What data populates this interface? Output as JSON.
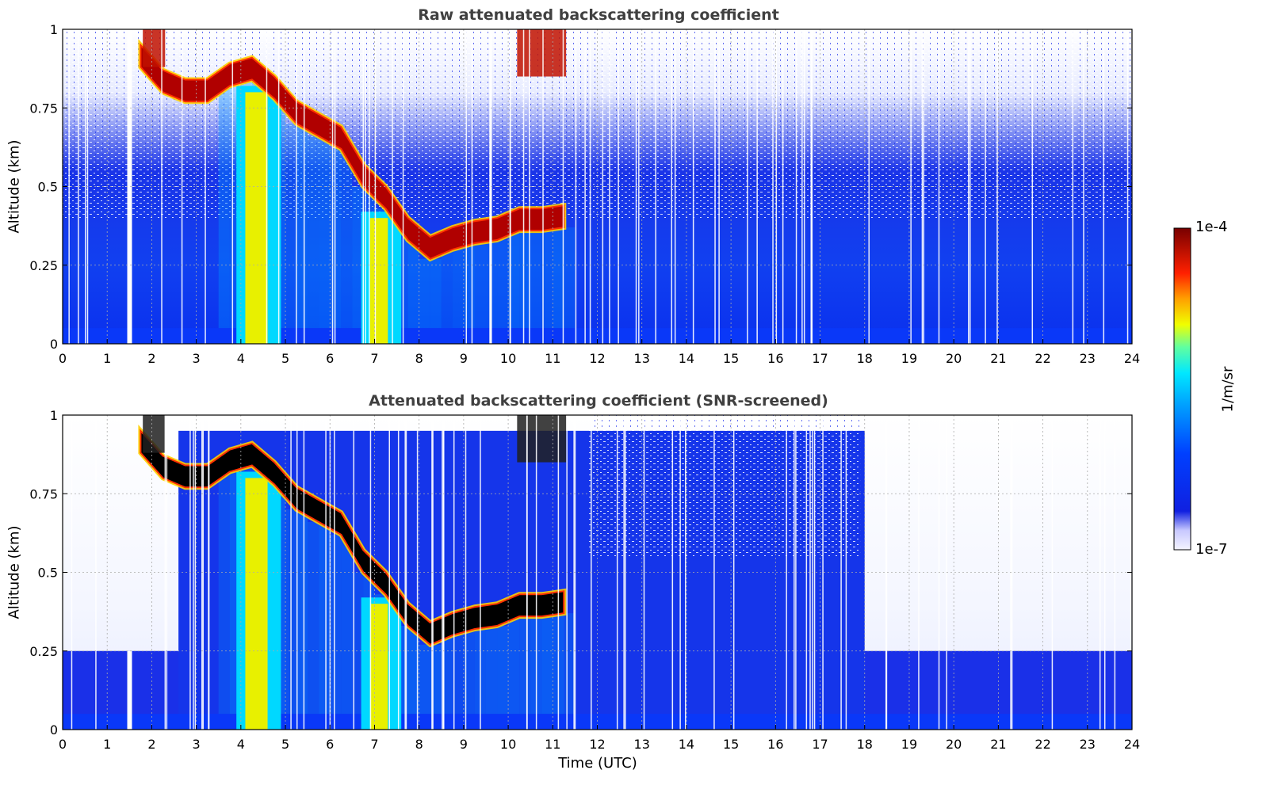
{
  "chart_data": [
    {
      "type": "heatmap",
      "title": "Raw attenuated backscattering coefficient",
      "xlabel": "",
      "ylabel": "Altitude (km)",
      "xlim": [
        0,
        24
      ],
      "ylim": [
        0,
        1
      ],
      "x_ticks": [
        "0",
        "1",
        "2",
        "3",
        "4",
        "5",
        "6",
        "7",
        "8",
        "9",
        "10",
        "11",
        "12",
        "13",
        "14",
        "15",
        "16",
        "17",
        "18",
        "19",
        "20",
        "21",
        "22",
        "23",
        "24"
      ],
      "y_ticks": [
        "0",
        "0.25",
        "0.5",
        "0.75",
        "1"
      ],
      "grid": true,
      "cloud_base_profile": {
        "time_utc": [
          1.75,
          2.25,
          2.75,
          3.25,
          3.75,
          4.25,
          4.75,
          5.25,
          5.75,
          6.25,
          6.75,
          7.25,
          7.75,
          8.25,
          8.75,
          9.25,
          9.75,
          10.25,
          10.75,
          11.25
        ],
        "altitude_km": [
          0.88,
          0.8,
          0.77,
          0.77,
          0.82,
          0.84,
          0.78,
          0.7,
          0.66,
          0.62,
          0.5,
          0.43,
          0.33,
          0.27,
          0.3,
          0.32,
          0.33,
          0.36,
          0.36,
          0.37
        ]
      }
    },
    {
      "type": "heatmap",
      "title": "Attenuated backscattering coefficient (SNR-screened)",
      "xlabel": "Time (UTC)",
      "ylabel": "Altitude (km)",
      "xlim": [
        0,
        24
      ],
      "ylim": [
        0,
        1
      ],
      "x_ticks": [
        "0",
        "1",
        "2",
        "3",
        "4",
        "5",
        "6",
        "7",
        "8",
        "9",
        "10",
        "11",
        "12",
        "13",
        "14",
        "15",
        "16",
        "17",
        "18",
        "19",
        "20",
        "21",
        "22",
        "23",
        "24"
      ],
      "y_ticks": [
        "0",
        "0.25",
        "0.5",
        "0.75",
        "1"
      ],
      "grid": true
    }
  ],
  "colorbar": {
    "label": "1/m/sr",
    "max_label": "1e-4",
    "min_label": "1e-7",
    "scale": "log",
    "colors": [
      "#f0f0ff",
      "#0a14e6",
      "#0050ff",
      "#00a0ff",
      "#00e0ff",
      "#40ffc0",
      "#ffff00",
      "#ffa000",
      "#ff3000",
      "#c00000",
      "#780000"
    ]
  }
}
